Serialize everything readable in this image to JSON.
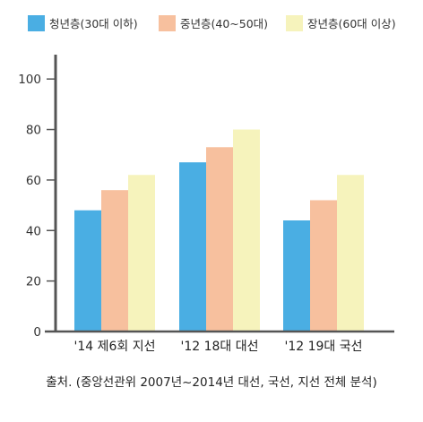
{
  "chart_data": {
    "type": "bar",
    "categories": [
      "'14 제6회 지선",
      "'12 18대 대선",
      "'12 19대 국선"
    ],
    "series": [
      {
        "name": "청년층(30대 이하)",
        "values": [
          48,
          67,
          44
        ],
        "color": "#4aaee3"
      },
      {
        "name": "중년층(40~50대)",
        "values": [
          56,
          73,
          52
        ],
        "color": "#f7c09e"
      },
      {
        "name": "장년층(60대 이상)",
        "values": [
          62,
          80,
          62
        ],
        "color": "#f6f3bc"
      }
    ],
    "ylim": [
      0,
      110
    ],
    "yticks": [
      0,
      20,
      40,
      60,
      80,
      100
    ],
    "grid": false,
    "legend_position": "top",
    "axis_color": "#555555",
    "source": "출처. (중앙선관위 2007년~2014년 대선, 국선, 지선 전체 분석)"
  }
}
